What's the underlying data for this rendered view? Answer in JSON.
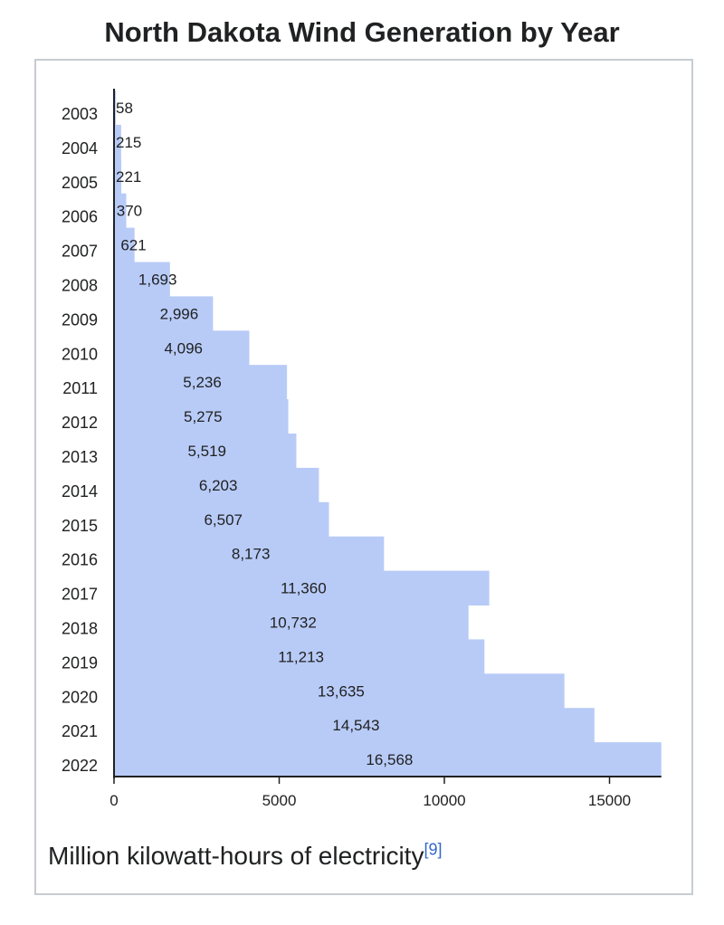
{
  "chart_data": {
    "type": "bar",
    "orientation": "horizontal",
    "title": "North Dakota Wind Generation by Year",
    "categories": [
      "2003",
      "2004",
      "2005",
      "2006",
      "2007",
      "2008",
      "2009",
      "2010",
      "2011",
      "2012",
      "2013",
      "2014",
      "2015",
      "2016",
      "2017",
      "2018",
      "2019",
      "2020",
      "2021",
      "2022"
    ],
    "values": [
      58,
      215,
      221,
      370,
      621,
      1693,
      2996,
      4096,
      5236,
      5275,
      5519,
      6203,
      6507,
      8173,
      11360,
      10732,
      11213,
      13635,
      14543,
      16568
    ],
    "value_labels": [
      "58",
      "215",
      "221",
      "370",
      "621",
      "1,693",
      "2,996",
      "4,096",
      "5,236",
      "5,275",
      "5,519",
      "6,203",
      "6,507",
      "8,173",
      "11,360",
      "10,732",
      "11,213",
      "13,635",
      "14,543",
      "16,568"
    ],
    "x_ticks": [
      "0",
      "5000",
      "10000",
      "15000"
    ],
    "xlim": [
      0,
      16568
    ],
    "bar_color": "#b8cbf7",
    "grid": false
  },
  "caption": {
    "text": "Million kilowatt-hours of electricity",
    "reference": "[9]",
    "reference_color": "#3366cc"
  }
}
